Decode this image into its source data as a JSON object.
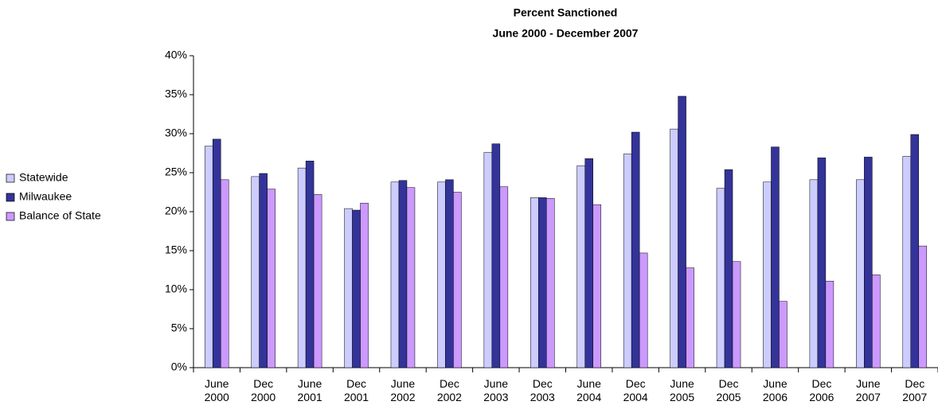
{
  "chart_data": {
    "type": "bar",
    "title": "Percent Sanctioned",
    "subtitle": "June 2000 - December 2007",
    "categories": [
      "June 2000",
      "Dec 2000",
      "June 2001",
      "Dec 2001",
      "June 2002",
      "Dec 2002",
      "June 2003",
      "Dec 2003",
      "June 2004",
      "Dec 2004",
      "June 2005",
      "Dec 2005",
      "June 2006",
      "Dec 2006",
      "June 2007",
      "Dec 2007"
    ],
    "series": [
      {
        "name": "Statewide",
        "color": "#ccccff",
        "values": [
          28.4,
          24.5,
          25.6,
          20.4,
          23.8,
          23.8,
          27.6,
          21.8,
          25.9,
          27.4,
          30.6,
          23.0,
          23.8,
          24.1,
          24.1,
          27.1
        ]
      },
      {
        "name": "Milwaukee",
        "color": "#333399",
        "values": [
          29.3,
          24.9,
          26.5,
          20.2,
          24.0,
          24.1,
          28.7,
          21.8,
          26.8,
          30.2,
          34.8,
          25.4,
          28.3,
          26.9,
          27.0,
          29.9
        ]
      },
      {
        "name": "Balance of State",
        "color": "#cc99ff",
        "values": [
          24.1,
          22.9,
          22.2,
          21.1,
          23.1,
          22.5,
          23.2,
          21.7,
          20.9,
          14.7,
          12.8,
          13.6,
          8.5,
          11.1,
          11.9,
          15.6
        ]
      }
    ],
    "ylim": [
      0,
      40
    ],
    "yticks": [
      {
        "value": 0,
        "label": "0%"
      },
      {
        "value": 5,
        "label": "5%"
      },
      {
        "value": 10,
        "label": "10%"
      },
      {
        "value": 15,
        "label": "15%"
      },
      {
        "value": 20,
        "label": "20%"
      },
      {
        "value": 25,
        "label": "25%"
      },
      {
        "value": 30,
        "label": "30%"
      },
      {
        "value": 35,
        "label": "35%"
      },
      {
        "value": 40,
        "label": "40%"
      }
    ],
    "grid": false,
    "legend": "left"
  }
}
